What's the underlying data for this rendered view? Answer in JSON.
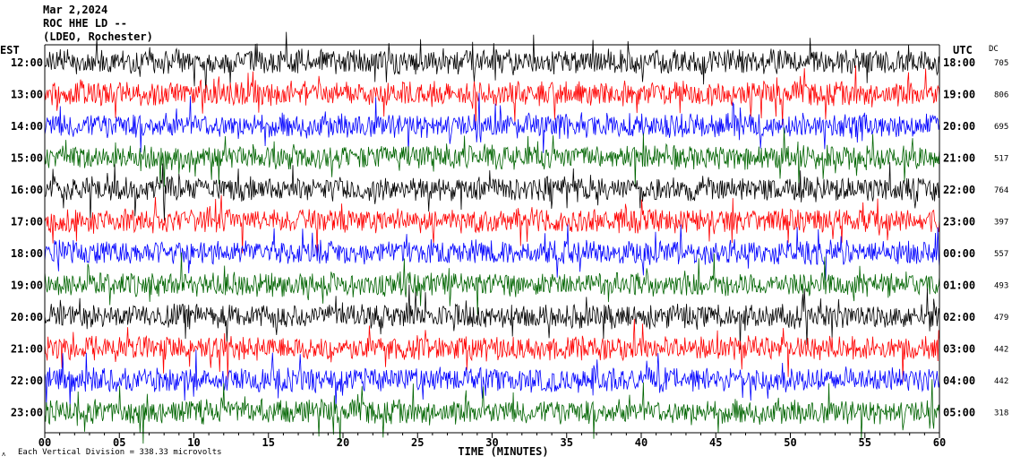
{
  "header": {
    "date": "Mar 2,2024",
    "station": "ROC HHE LD --",
    "network": "(LDEO, Rochester)"
  },
  "labels": {
    "left_zone": "EST",
    "right_zone": "UTC",
    "dc_header": "DC",
    "footer": "Each Vertical Division =  338.33 microvolts",
    "logo": "ʌ"
  },
  "colors": {
    "trace_cycle": [
      "#000000",
      "#ff0000",
      "#0000ff",
      "#006400"
    ],
    "background": "#ffffff"
  },
  "chart_data": {
    "type": "line",
    "title": "Mar 2,2024",
    "xlabel": "TIME (MINUTES)",
    "ylabel": "",
    "xlim": [
      0,
      60
    ],
    "x_ticks": [
      "00",
      "05",
      "10",
      "15",
      "20",
      "25",
      "30",
      "35",
      "40",
      "45",
      "50",
      "55",
      "60"
    ],
    "grid": false,
    "legend": "none",
    "series": [
      {
        "left_label": "12:00",
        "right_label": "18:00",
        "dc": "705",
        "color": "#000000"
      },
      {
        "left_label": "13:00",
        "right_label": "19:00",
        "dc": "806",
        "color": "#ff0000"
      },
      {
        "left_label": "14:00",
        "right_label": "20:00",
        "dc": "695",
        "color": "#0000ff"
      },
      {
        "left_label": "15:00",
        "right_label": "21:00",
        "dc": "517",
        "color": "#006400"
      },
      {
        "left_label": "16:00",
        "right_label": "22:00",
        "dc": "764",
        "color": "#000000"
      },
      {
        "left_label": "17:00",
        "right_label": "23:00",
        "dc": "397",
        "color": "#ff0000"
      },
      {
        "left_label": "18:00",
        "right_label": "00:00",
        "dc": "557",
        "color": "#0000ff"
      },
      {
        "left_label": "19:00",
        "right_label": "01:00",
        "dc": "493",
        "color": "#006400"
      },
      {
        "left_label": "20:00",
        "right_label": "02:00",
        "dc": "479",
        "color": "#000000"
      },
      {
        "left_label": "21:00",
        "right_label": "03:00",
        "dc": "442",
        "color": "#ff0000"
      },
      {
        "left_label": "22:00",
        "right_label": "04:00",
        "dc": "442",
        "color": "#0000ff"
      },
      {
        "left_label": "23:00",
        "right_label": "05:00",
        "dc": "318",
        "color": "#006400"
      }
    ]
  }
}
